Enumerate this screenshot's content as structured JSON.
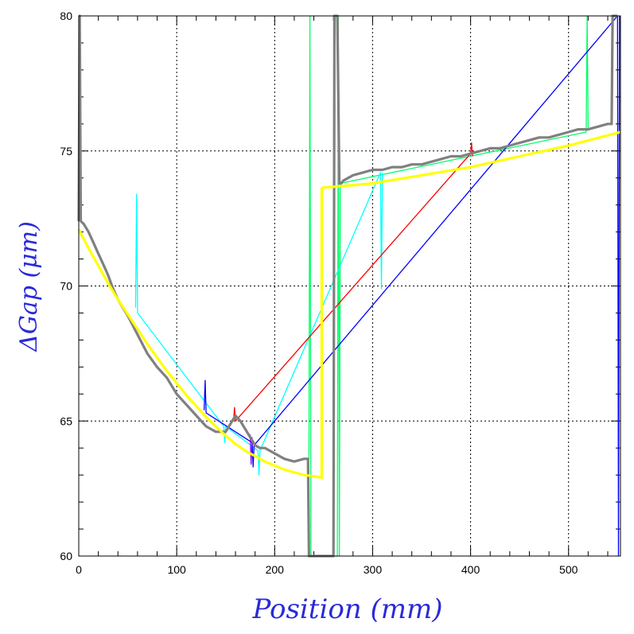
{
  "chart_data": {
    "type": "line",
    "xlabel": "Position (mm)",
    "ylabel": "ΔGap (μm)",
    "xlim": [
      0,
      553
    ],
    "ylim": [
      60,
      80
    ],
    "x_ticks": [
      0,
      100,
      200,
      300,
      400,
      500
    ],
    "y_ticks": [
      60,
      65,
      70,
      75,
      80
    ],
    "x_tick_labels": [
      "0",
      "100",
      "200",
      "300",
      "400",
      "500"
    ],
    "y_tick_labels": [
      "60",
      "65",
      "70",
      "75",
      "80"
    ],
    "grid": true,
    "legend": "none",
    "series": [
      {
        "color": "#808080",
        "role": "measured",
        "x": [
          0,
          1,
          2,
          5,
          10,
          15,
          20,
          25,
          30,
          35,
          40,
          45,
          50,
          60,
          70,
          80,
          90,
          100,
          110,
          120,
          130,
          140,
          150,
          155,
          160,
          165,
          170,
          175,
          180,
          185,
          190,
          200,
          210,
          220,
          230,
          234,
          235,
          236,
          237,
          238,
          239,
          240,
          242,
          244,
          246,
          248,
          250,
          252,
          254,
          256,
          258,
          260,
          261,
          262,
          264,
          266,
          268,
          270,
          275,
          280,
          290,
          300,
          310,
          320,
          330,
          340,
          350,
          360,
          370,
          380,
          390,
          400,
          410,
          420,
          430,
          440,
          450,
          460,
          470,
          480,
          490,
          500,
          510,
          520,
          530,
          540,
          544,
          545,
          546,
          547,
          548,
          549,
          550
        ],
        "y": [
          72.4,
          80,
          72.4,
          72.3,
          72.0,
          71.6,
          71.2,
          70.8,
          70.4,
          69.9,
          69.5,
          69.2,
          68.9,
          68.2,
          67.5,
          67.0,
          66.6,
          66.0,
          65.6,
          65.2,
          64.8,
          64.6,
          64.6,
          64.9,
          65.2,
          65.0,
          64.7,
          64.4,
          64.1,
          64.0,
          64.0,
          63.8,
          63.6,
          63.5,
          63.6,
          63.6,
          60,
          60,
          60,
          60,
          60,
          60,
          60,
          60,
          60,
          60,
          60,
          60,
          60,
          60,
          60,
          60,
          80,
          80,
          80,
          73.8,
          73.8,
          73.9,
          74.0,
          74.1,
          74.2,
          74.3,
          74.3,
          74.4,
          74.4,
          74.5,
          74.5,
          74.6,
          74.7,
          74.8,
          74.8,
          74.9,
          75.0,
          75.1,
          75.1,
          75.2,
          75.3,
          75.4,
          75.5,
          75.5,
          75.6,
          75.7,
          75.8,
          75.8,
          75.9,
          76.0,
          76.0,
          80,
          80,
          80,
          80,
          80,
          80
        ]
      },
      {
        "color": "#ffff00",
        "role": "model",
        "x": [
          0,
          10,
          20,
          30,
          40,
          50,
          60,
          70,
          80,
          90,
          100,
          110,
          120,
          130,
          140,
          150,
          160,
          170,
          180,
          190,
          200,
          210,
          220,
          230,
          240,
          248,
          248,
          250,
          270,
          300,
          350,
          400,
          450,
          500,
          553
        ],
        "y": [
          72.1,
          71.4,
          70.75,
          70.1,
          69.5,
          68.95,
          68.4,
          67.85,
          67.35,
          66.85,
          66.4,
          65.95,
          65.55,
          65.15,
          64.8,
          64.45,
          64.15,
          63.9,
          63.7,
          63.5,
          63.35,
          63.2,
          63.1,
          63.0,
          62.95,
          62.9,
          73.6,
          73.65,
          73.7,
          73.8,
          74.1,
          74.4,
          74.8,
          75.2,
          75.7
        ]
      },
      {
        "color": "#00ff66",
        "role": "trace-spike",
        "x": [
          235,
          236,
          237,
          264,
          265,
          266,
          267,
          518,
          519,
          520
        ],
        "y": [
          63.6,
          80,
          60,
          60,
          80,
          60,
          73.8,
          75.7,
          80,
          75.8
        ]
      },
      {
        "color": "#00ffff",
        "role": "trace-spike",
        "x": [
          58,
          59,
          60,
          148,
          149,
          150,
          183,
          184,
          185,
          308,
          309,
          310
        ],
        "y": [
          69.2,
          73.4,
          69.0,
          64.8,
          64.2,
          64.8,
          63.9,
          63.0,
          63.9,
          74.2,
          69.9,
          74.2
        ]
      },
      {
        "color": "#0000ff",
        "role": "trace-spike",
        "x": [
          128,
          129,
          130,
          177,
          178,
          179,
          550,
          551,
          552
        ],
        "y": [
          65.4,
          66.5,
          65.3,
          64.2,
          63.3,
          64.1,
          80,
          60,
          80
        ]
      },
      {
        "color": "#ff0000",
        "role": "trace-spike",
        "x": [
          158,
          159,
          160,
          400,
          401,
          402
        ],
        "y": [
          65.0,
          65.5,
          65.0,
          74.9,
          75.3,
          74.8
        ]
      },
      {
        "color": "#8b00ff",
        "role": "trace-spike",
        "x": [
          175,
          176,
          177
        ],
        "y": [
          64.5,
          63.4,
          64.4
        ]
      }
    ]
  }
}
